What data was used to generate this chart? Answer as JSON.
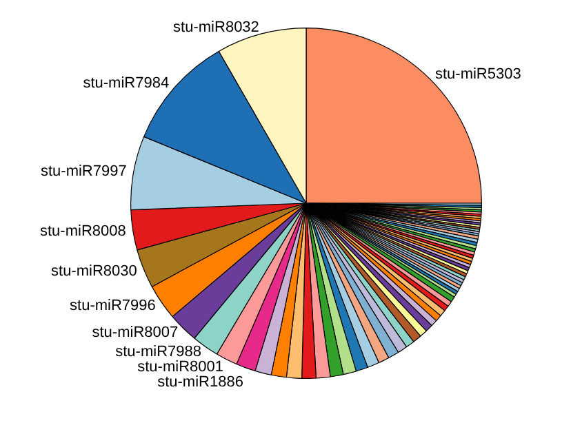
{
  "chart_data": {
    "type": "pie",
    "categories": [
      "stu-miR5303",
      null,
      null,
      null,
      null,
      null,
      null,
      null,
      null,
      null,
      null,
      null,
      null,
      null,
      null,
      null,
      null,
      null,
      null,
      null,
      null,
      null,
      null,
      null,
      null,
      null,
      null,
      null,
      null,
      null,
      null,
      null,
      null,
      null,
      null,
      null,
      null,
      null,
      null,
      null,
      null,
      null,
      null,
      null,
      null,
      null,
      null,
      null,
      null,
      null,
      null,
      null,
      null,
      null,
      null,
      null,
      null,
      null,
      "stu-miR1886",
      "stu-miR8001",
      "stu-miR7988",
      "stu-miR8007",
      "stu-miR7996",
      "stu-miR8030",
      "stu-miR8008",
      "stu-miR7997",
      "stu-miR7984",
      "stu-miR8032"
    ],
    "values": [
      25,
      0.2,
      0.2,
      0.2,
      0.2,
      0.2,
      0.2,
      0.2,
      0.2,
      0.2,
      0.2,
      0.2,
      0.2,
      0.2,
      0.2,
      0.2,
      0.3,
      0.3,
      0.3,
      0.3,
      0.3,
      0.3,
      0.3,
      0.3,
      0.3,
      0.3,
      0.3,
      0.3,
      0.3,
      0.3,
      0.3,
      0.3,
      0.3,
      0.3,
      0.3,
      0.3,
      0.5,
      0.5,
      0.5,
      0.6,
      0.6,
      0.6,
      0.7,
      0.7,
      0.8,
      0.8,
      0.9,
      1.0,
      1.0,
      1.1,
      1.1,
      1.2,
      1.2,
      1.3,
      1.3,
      1.4,
      1.4,
      1.5,
      1.8,
      2.0,
      2.5,
      2.8,
      3.3,
      3.6,
      3.7,
      6.8,
      10.5,
      8.3
    ],
    "colors": [
      "#fc8d62",
      "#a6cee3",
      "#1f78b4",
      "#b2df8a",
      "#33a02c",
      "#fb9a99",
      "#e31a1c",
      "#fdbf6f",
      "#ff7f00",
      "#cab2d6",
      "#6a3d9a",
      "#ffff99",
      "#b15928",
      "#8dd3c7",
      "#bebada",
      "#80b1d3",
      "#f4a582",
      "#a6cee3",
      "#1f78b4",
      "#b2df8a",
      "#33a02c",
      "#fb9a99",
      "#e31a1c",
      "#fdbf6f",
      "#ff7f00",
      "#cab2d6",
      "#6a3d9a",
      "#ffff99",
      "#b15928",
      "#8dd3c7",
      "#bebada",
      "#80b1d3",
      "#f4a582",
      "#a6cee3",
      "#1f78b4",
      "#b2df8a",
      "#33a02c",
      "#fb9a99",
      "#e31a1c",
      "#fdbf6f",
      "#ff7f00",
      "#cab2d6",
      "#6a3d9a",
      "#ffff99",
      "#b15928",
      "#8dd3c7",
      "#bebada",
      "#80b1d3",
      "#f4a582",
      "#a6cee3",
      "#1f78b4",
      "#b2df8a",
      "#33a02c",
      "#fb9a99",
      "#e31a1c",
      "#fdbf6f",
      "#ff7f00",
      "#cab2d6",
      "#e7298a",
      "#fb9a99",
      "#8dd3c7",
      "#6a3d9a",
      "#ff7f00",
      "#a6761d",
      "#e31a1c",
      "#a6cee3",
      "#1f6fb4",
      "#fff5c0"
    ]
  }
}
